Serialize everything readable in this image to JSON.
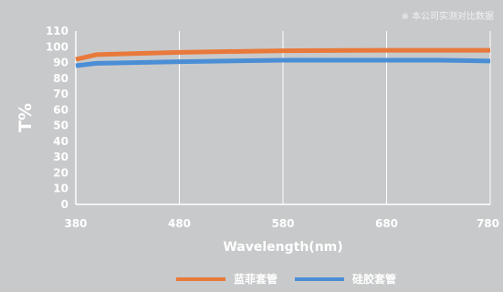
{
  "note": "※ 本公司实测对比数据",
  "chart_data": {
    "type": "line",
    "xlabel": "Wavelength(nm)",
    "ylabel": "T%",
    "xlim": [
      380,
      780
    ],
    "ylim": [
      0,
      110
    ],
    "x_ticks": [
      380,
      480,
      580,
      680,
      780
    ],
    "y_ticks": [
      0,
      10,
      20,
      30,
      40,
      50,
      60,
      70,
      80,
      90,
      100,
      110
    ],
    "grid": "vertical-only",
    "legend_position": "bottom-center",
    "series": [
      {
        "name": "蓝菲套管",
        "color": "#e8793a",
        "x": [
          380,
          400,
          480,
          580,
          680,
          780
        ],
        "y": [
          92,
          95,
          96.5,
          97.5,
          97.8,
          97.8
        ]
      },
      {
        "name": "硅胶套管",
        "color": "#4a8ed6",
        "x": [
          380,
          400,
          480,
          580,
          680,
          730,
          780
        ],
        "y": [
          88,
          89.5,
          90.5,
          91.5,
          91.5,
          91.5,
          91
        ]
      }
    ]
  }
}
